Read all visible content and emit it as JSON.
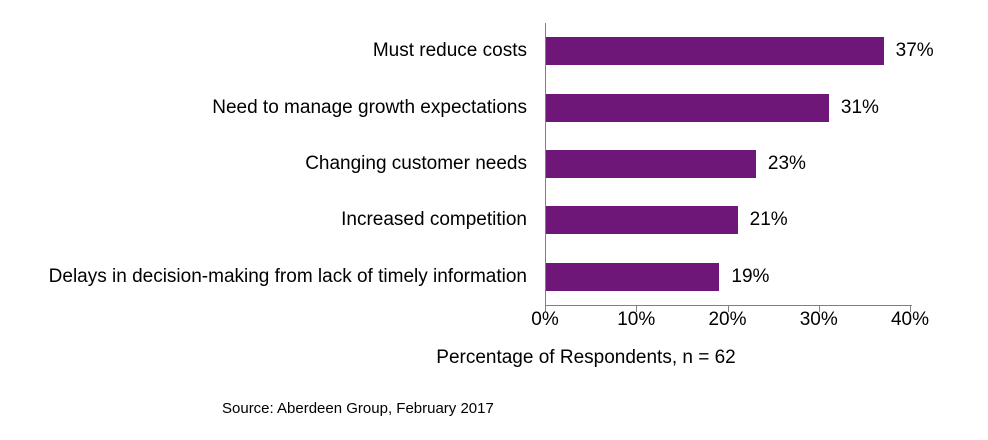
{
  "chart_data": {
    "type": "bar",
    "orientation": "horizontal",
    "title": "",
    "categories": [
      "Must reduce costs",
      "Need to manage growth expectations",
      "Changing customer needs",
      "Increased competition",
      "Delays in decision-making from lack of timely information"
    ],
    "values": [
      37,
      31,
      23,
      21,
      19
    ],
    "value_labels": [
      "37%",
      "31%",
      "23%",
      "21%",
      "19%"
    ],
    "xlabel": "Percentage of Respondents, n = 62",
    "ylabel": "",
    "x_ticks": [
      0,
      10,
      20,
      30,
      40
    ],
    "x_tick_labels": [
      "0%",
      "10%",
      "20%",
      "30%",
      "40%"
    ],
    "xlim": [
      0,
      40
    ],
    "grid": false,
    "legend": false,
    "bar_color": "#6E1778",
    "axis_color": "#808080",
    "text_color": "#000000"
  },
  "source_note": "Source: Aberdeen Group,  February 2017"
}
